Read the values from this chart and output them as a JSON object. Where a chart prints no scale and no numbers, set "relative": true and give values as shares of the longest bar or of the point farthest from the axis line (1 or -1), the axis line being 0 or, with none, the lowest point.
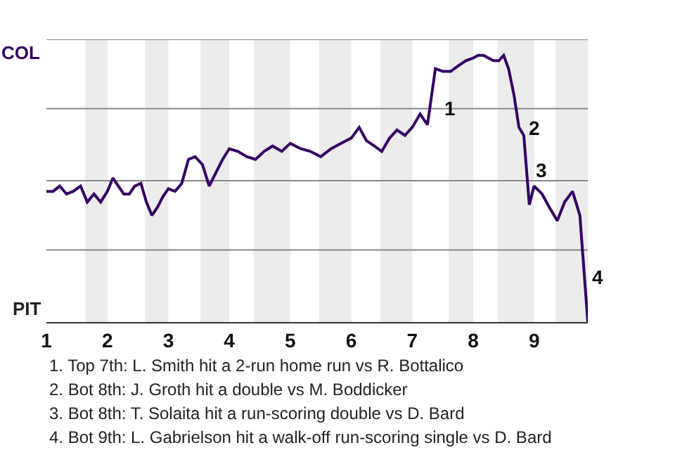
{
  "chart_data": {
    "type": "line",
    "relative": true,
    "x": [
      1,
      1.11,
      1.22,
      1.33,
      1.44,
      1.56,
      1.67,
      1.78,
      1.89,
      2,
      2.09,
      2.18,
      2.27,
      2.36,
      2.45,
      2.55,
      2.64,
      2.73,
      2.82,
      2.91,
      3,
      3.11,
      3.22,
      3.33,
      3.44,
      3.56,
      3.67,
      3.78,
      3.89,
      4,
      4.14,
      4.29,
      4.43,
      4.57,
      4.71,
      4.86,
      5,
      5.17,
      5.33,
      5.5,
      5.67,
      5.83,
      6,
      6.13,
      6.25,
      6.38,
      6.5,
      6.63,
      6.75,
      6.88,
      7,
      7.13,
      7.25,
      7.38,
      7.5,
      7.63,
      7.75,
      7.88,
      8,
      8.08,
      8.17,
      8.25,
      8.33,
      8.42,
      8.5,
      8.58,
      8.67,
      8.75,
      8.83,
      8.92,
      9,
      9.13,
      9.25,
      9.38,
      9.5,
      9.63,
      9.75,
      9.88
    ],
    "series": [
      {
        "color": "#330066",
        "values": [
          0.49,
          0.49,
          0.51,
          0.48,
          0.49,
          0.51,
          0.45,
          0.48,
          0.45,
          0.49,
          0.54,
          0.51,
          0.48,
          0.48,
          0.51,
          0.52,
          0.45,
          0.4,
          0.43,
          0.47,
          0.5,
          0.49,
          0.52,
          0.61,
          0.62,
          0.59,
          0.51,
          0.56,
          0.61,
          0.65,
          0.64,
          0.62,
          0.61,
          0.64,
          0.66,
          0.64,
          0.67,
          0.65,
          0.64,
          0.62,
          0.65,
          0.67,
          0.69,
          0.73,
          0.68,
          0.66,
          0.64,
          0.69,
          0.72,
          0.7,
          0.73,
          0.78,
          0.74,
          0.95,
          0.94,
          0.94,
          0.96,
          0.98,
          0.99,
          1,
          1,
          0.99,
          0.98,
          0.98,
          1,
          0.95,
          0.85,
          0.73,
          0.7,
          0.44,
          0.51,
          0.48,
          0.43,
          0.38,
          0.45,
          0.49,
          0.4,
          0
        ]
      }
    ],
    "xlim": [
      1,
      9.88
    ],
    "xticks": [
      1,
      2,
      3,
      4,
      5,
      6,
      7,
      8,
      9
    ],
    "ref_lines": [
      {
        "axis": "y",
        "value": 0.27,
        "color": "#888888"
      },
      {
        "axis": "y",
        "value": 0.53,
        "color": "#888888"
      },
      {
        "axis": "y",
        "value": 0.8,
        "color": "#888888"
      },
      {
        "axis": "y",
        "value": 1.06,
        "color": "#888888"
      }
    ],
    "marker": "none",
    "bands": [
      {
        "axis": "x",
        "from": 1.64,
        "to": 2,
        "color": "#ececec"
      },
      {
        "axis": "x",
        "from": 2.62,
        "to": 3,
        "color": "#ececec"
      },
      {
        "axis": "x",
        "from": 3.53,
        "to": 4,
        "color": "#ececec"
      },
      {
        "axis": "x",
        "from": 4.4,
        "to": 5,
        "color": "#ececec"
      },
      {
        "axis": "x",
        "from": 5.47,
        "to": 6,
        "color": "#ececec"
      },
      {
        "axis": "x",
        "from": 6.48,
        "to": 7,
        "color": "#ececec"
      },
      {
        "axis": "x",
        "from": 7.6,
        "to": 8,
        "color": "#ececec"
      },
      {
        "axis": "x",
        "from": 8.4,
        "to": 9,
        "color": "#ececec"
      },
      {
        "axis": "x",
        "from": 9.35,
        "to": 9.88,
        "color": "#ececec"
      }
    ],
    "annotations": [
      "COL",
      "PIT",
      {
        "text": "1",
        "x": 7.38,
        "y": 0.8
      },
      {
        "text": "2",
        "x": 8.77,
        "y": 0.73
      },
      {
        "text": "3",
        "x": 8.88,
        "y": 0.57
      },
      {
        "text": "4",
        "x": 9.8,
        "y": 0.17
      },
      "1. Top 7th: L. Smith hit a 2-run home run vs R. Bottalico",
      "2. Bot 8th: J. Groth hit a double vs M. Boddicker",
      "3. Bot 8th: T. Solaita hit a run-scoring double vs D. Bard",
      "4. Bot 9th: L. Gabrielson hit a walk-off run-scoring single vs D. Bard"
    ]
  }
}
